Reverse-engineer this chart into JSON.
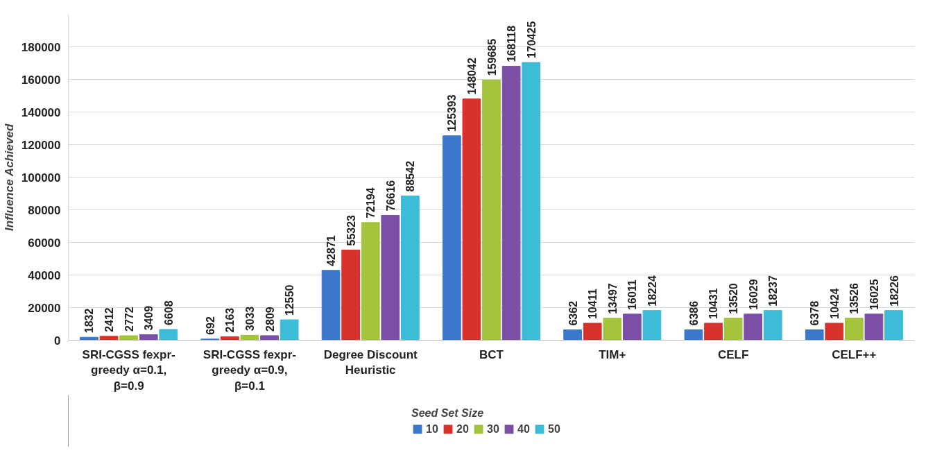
{
  "chart_data": {
    "type": "bar",
    "ylabel": "Influence Achieved",
    "legend_title": "Seed Set Size",
    "legend": "bottom",
    "grid": "y",
    "data_labels": true,
    "categories": [
      "SRI-CGSS fexpr-greedy α=0.1, β=0.9",
      "SRI-CGSS fexpr-greedy α=0.9, β=0.1",
      "Degree Discount Heuristic",
      "BCT",
      "TIM+",
      "CELF",
      "CELF++"
    ],
    "ylim": [
      0,
      200000
    ],
    "yticks": [
      0,
      20000,
      40000,
      60000,
      80000,
      100000,
      120000,
      140000,
      160000,
      180000
    ],
    "series": [
      {
        "name": "10",
        "color": "#3b78c9",
        "values": [
          1832,
          692,
          42871,
          125393,
          6362,
          6386,
          6378
        ]
      },
      {
        "name": "20",
        "color": "#d9312b",
        "values": [
          2412,
          2163,
          55323,
          148042,
          10411,
          10431,
          10424
        ]
      },
      {
        "name": "30",
        "color": "#a3c43c",
        "values": [
          2772,
          3033,
          72194,
          159685,
          13497,
          13520,
          13526
        ]
      },
      {
        "name": "40",
        "color": "#7b4fa6",
        "values": [
          3409,
          2809,
          76616,
          168118,
          16011,
          16029,
          16025
        ]
      },
      {
        "name": "50",
        "color": "#3cbcd6",
        "values": [
          6608,
          12550,
          88542,
          170425,
          18224,
          18237,
          18226
        ]
      }
    ]
  }
}
